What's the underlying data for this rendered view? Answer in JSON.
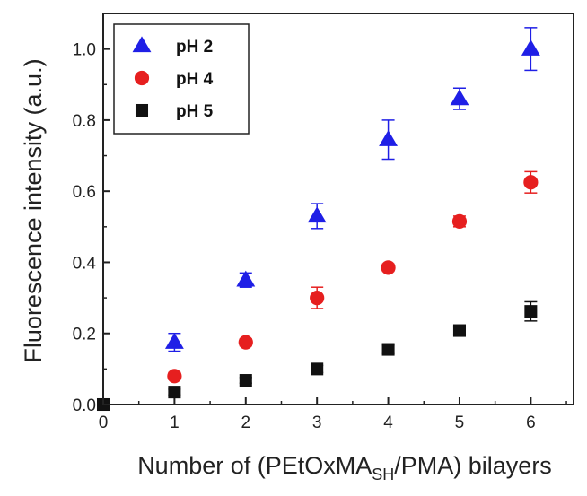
{
  "chart_data": {
    "type": "scatter",
    "title": "",
    "xlabel": {
      "main": "Number of (PEtOxMA",
      "sub": "SH",
      "rest": "/PMA) bilayers"
    },
    "ylabel": "Fluorescence intensity (a.u.)",
    "xlim": [
      0,
      6.6
    ],
    "ylim": [
      0,
      1.1
    ],
    "x_ticks": [
      "0",
      "1",
      "2",
      "3",
      "4",
      "5",
      "6"
    ],
    "y_ticks": [
      "0.0",
      "0.2",
      "0.4",
      "0.6",
      "0.8",
      "1.0"
    ],
    "legend_position": "top-left",
    "series": [
      {
        "name": "pH 2",
        "marker": "triangle",
        "color": "#1f1fe6",
        "x": [
          1,
          2,
          3,
          4,
          5,
          6
        ],
        "y": [
          0.175,
          0.35,
          0.53,
          0.745,
          0.86,
          1.0
        ],
        "err": [
          0.025,
          0.02,
          0.035,
          0.055,
          0.03,
          0.06
        ]
      },
      {
        "name": "pH 4",
        "marker": "circle",
        "color": "#e61f1f",
        "x": [
          1,
          2,
          3,
          4,
          5,
          6
        ],
        "y": [
          0.08,
          0.175,
          0.3,
          0.385,
          0.515,
          0.625
        ],
        "err": [
          0.01,
          0.01,
          0.03,
          0.01,
          0.015,
          0.03
        ]
      },
      {
        "name": "pH 5",
        "marker": "square",
        "color": "#111111",
        "x": [
          0,
          1,
          2,
          3,
          4,
          5,
          6
        ],
        "y": [
          0.0,
          0.035,
          0.068,
          0.1,
          0.155,
          0.208,
          0.262
        ],
        "err": [
          0.0,
          0.008,
          0.008,
          0.01,
          0.012,
          0.01,
          0.027
        ]
      }
    ]
  }
}
